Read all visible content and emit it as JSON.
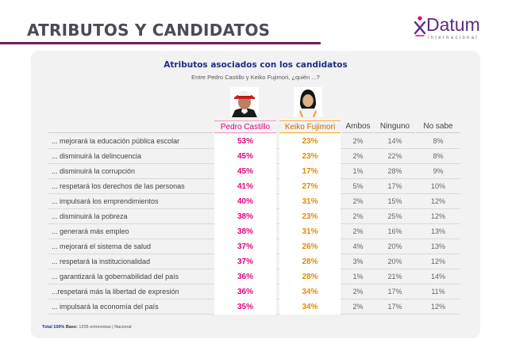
{
  "page": {
    "title": "ATRIBUTOS Y CANDIDATOS"
  },
  "logo": {
    "name": "Datum",
    "subtitle": "internacional"
  },
  "colors": {
    "castillo": "#e5007e",
    "fujimori": "#e68a00",
    "title_blue": "#1f2f85",
    "accent": "#6f1e63"
  },
  "chart_data": {
    "type": "table",
    "title": "Atributos asociados con los candidatos",
    "subtitle": "Entre Pedro Castillo y Keiko Fujimori, ¿quién ...?",
    "columns": [
      "Pedro Castillo",
      "Keiko Fujimori",
      "Ambos",
      "Ninguno",
      "No sabe"
    ],
    "rows": [
      {
        "label": "... mejorará la educación pública escolar",
        "values": [
          "53%",
          "23%",
          "2%",
          "14%",
          "8%"
        ]
      },
      {
        "label": "... disminuirá la delincuencia",
        "values": [
          "45%",
          "23%",
          "2%",
          "22%",
          "8%"
        ]
      },
      {
        "label": "... disminuirá la corrupción",
        "values": [
          "45%",
          "17%",
          "1%",
          "28%",
          "9%"
        ]
      },
      {
        "label": "... respetará los derechos de las personas",
        "values": [
          "41%",
          "27%",
          "5%",
          "17%",
          "10%"
        ]
      },
      {
        "label": "... impulsará los emprendimientos",
        "values": [
          "40%",
          "31%",
          "2%",
          "15%",
          "12%"
        ]
      },
      {
        "label": "... disminuirá la pobreza",
        "values": [
          "38%",
          "23%",
          "2%",
          "25%",
          "12%"
        ]
      },
      {
        "label": "... generará más empleo",
        "values": [
          "38%",
          "31%",
          "2%",
          "16%",
          "13%"
        ]
      },
      {
        "label": "... mejorará el sistema de salud",
        "values": [
          "37%",
          "26%",
          "4%",
          "20%",
          "13%"
        ]
      },
      {
        "label": "... respetará la institucionalidad",
        "values": [
          "37%",
          "28%",
          "3%",
          "20%",
          "12%"
        ]
      },
      {
        "label": "... garantizará la gobernabilidad del país",
        "values": [
          "36%",
          "28%",
          "1%",
          "21%",
          "14%"
        ]
      },
      {
        "label": "...respetará más la libertad de expresión",
        "values": [
          "36%",
          "34%",
          "2%",
          "17%",
          "11%"
        ]
      },
      {
        "label": "... impulsará la economía del país",
        "values": [
          "35%",
          "34%",
          "2%",
          "17%",
          "12%"
        ]
      }
    ]
  },
  "footnote": {
    "total": "Total 100%",
    "base_label": "Base:",
    "base_text": "1205 entrevistas | Nacional"
  }
}
